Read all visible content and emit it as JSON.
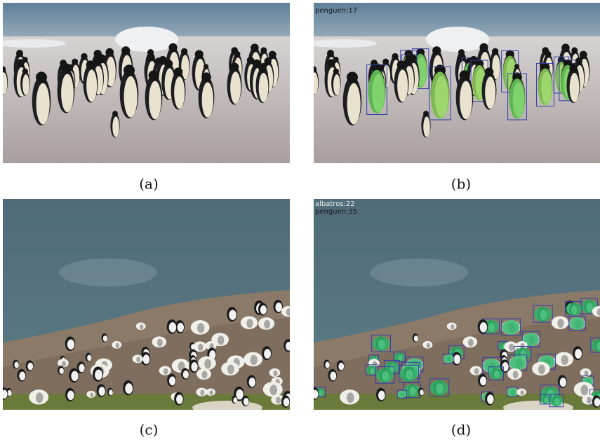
{
  "panels": [
    {
      "caption": "(a)"
    },
    {
      "caption": "(b)",
      "labels": [
        "penguen:17"
      ]
    },
    {
      "caption": "(c)"
    },
    {
      "caption": "(d)",
      "labels": [
        "albatros:22",
        "penguen:35"
      ]
    }
  ]
}
